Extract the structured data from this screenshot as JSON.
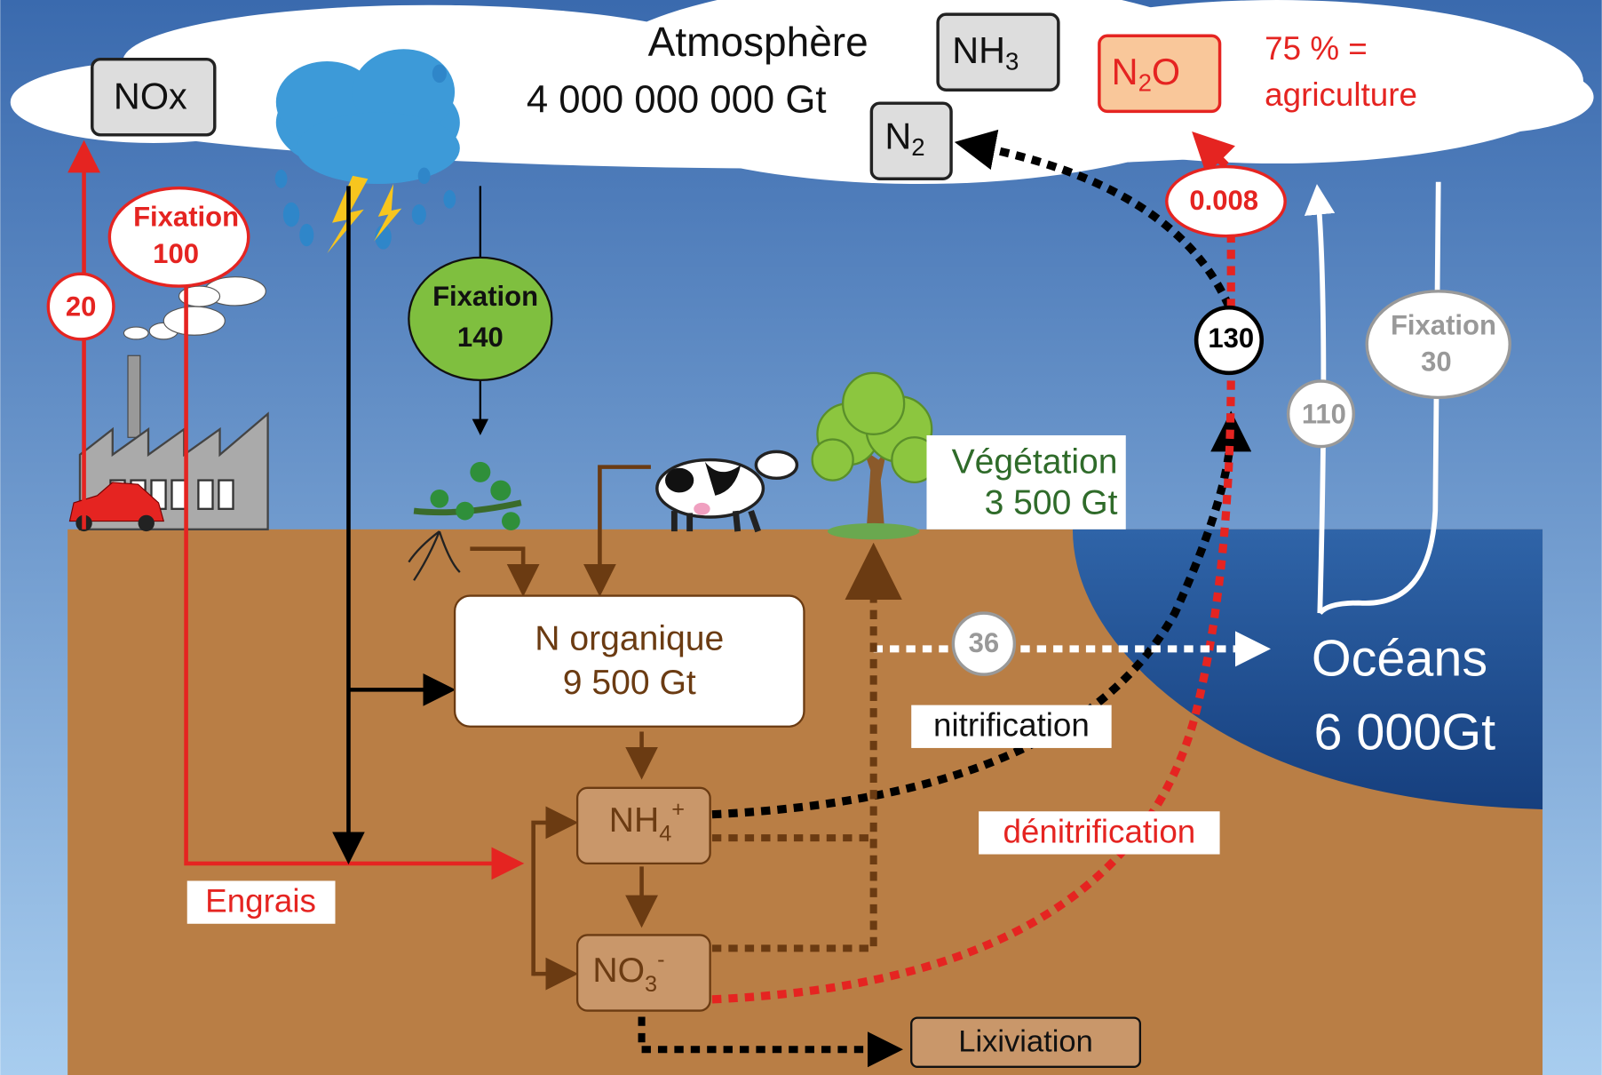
{
  "atmosphere": {
    "title": "Atmosphère",
    "amount": "4 000 000 000 Gt"
  },
  "gases": {
    "nox": "NOx",
    "nh3": {
      "base": "NH",
      "sub": "3"
    },
    "n2": {
      "base": "N",
      "sub": "2"
    },
    "n2o": {
      "base": "N",
      "sub": "2",
      "tail": "O"
    }
  },
  "n2o_note": [
    "75 % =",
    "agriculture"
  ],
  "fluxes": {
    "industrial_fixation": {
      "label": "Fixation",
      "value": "100"
    },
    "nox_emission": "20",
    "biological_fixation": {
      "label": "Fixation",
      "value": "140"
    },
    "ocean_fixation": {
      "label": "Fixation",
      "value": "30"
    },
    "ocean_release": "110",
    "denitrification_n2": "130",
    "n2o_emission": "0.008",
    "transfer_to_ocean": "36"
  },
  "vegetation": {
    "label": "Végétation",
    "amount": "3 500 Gt"
  },
  "organic_n": {
    "label": "N organique",
    "amount": "9 500 Gt"
  },
  "ammonium": {
    "base": "NH",
    "sub": "4",
    "sup": "+"
  },
  "nitrate": {
    "base": "NO",
    "sub": "3",
    "sup": "-"
  },
  "processes": {
    "nitrification": "nitrification",
    "denitrification": "dénitrification",
    "fertilizer": "Engrais",
    "leaching": "Lixiviation"
  },
  "oceans": {
    "label": "Océans",
    "amount": "6 000Gt"
  }
}
